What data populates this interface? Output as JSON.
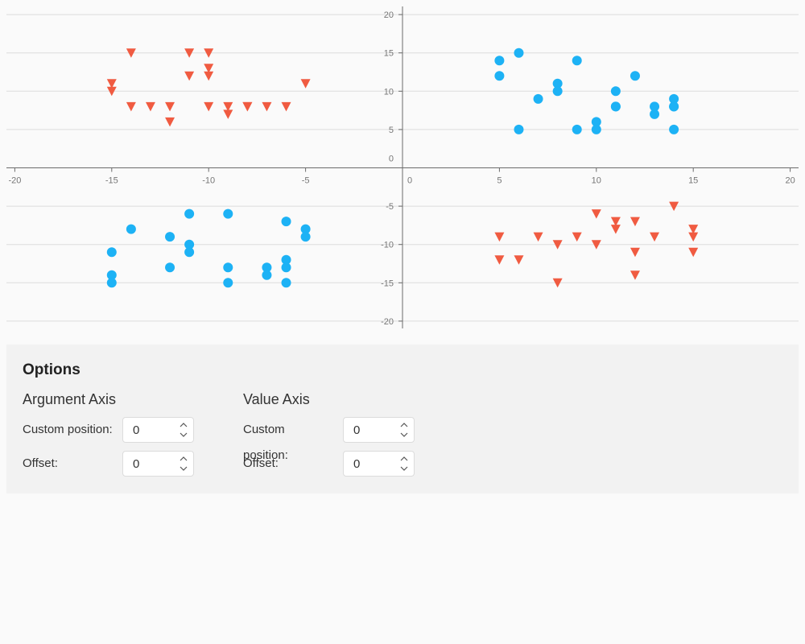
{
  "chart_data": {
    "type": "scatter",
    "title": "",
    "xlabel": "",
    "ylabel": "",
    "xlim": [
      -20,
      20
    ],
    "ylim": [
      -20,
      20
    ],
    "x_ticks": [
      -20,
      -15,
      -10,
      -5,
      0,
      5,
      10,
      15,
      20
    ],
    "y_ticks": [
      20,
      15,
      10,
      5,
      0,
      -5,
      -10,
      -15,
      -20
    ],
    "grid": "horizontal",
    "legend": "none",
    "series": [
      {
        "marker": "circle",
        "color": "#1db2f5",
        "points": [
          [
            5,
            14
          ],
          [
            5,
            12
          ],
          [
            6,
            15
          ],
          [
            6,
            5
          ],
          [
            7,
            9
          ],
          [
            8,
            11
          ],
          [
            8,
            10
          ],
          [
            9,
            14
          ],
          [
            9,
            5
          ],
          [
            10,
            6
          ],
          [
            10,
            5
          ],
          [
            11,
            10
          ],
          [
            11,
            8
          ],
          [
            11,
            8
          ],
          [
            12,
            12
          ],
          [
            13,
            8
          ],
          [
            13,
            7
          ],
          [
            14,
            9
          ],
          [
            14,
            8
          ],
          [
            14,
            8
          ],
          [
            14,
            5
          ],
          [
            -15,
            -11
          ],
          [
            -15,
            -14
          ],
          [
            -15,
            -15
          ],
          [
            -14,
            -8
          ],
          [
            -12,
            -9
          ],
          [
            -12,
            -13
          ],
          [
            -11,
            -6
          ],
          [
            -11,
            -10
          ],
          [
            -11,
            -11
          ],
          [
            -9,
            -6
          ],
          [
            -9,
            -13
          ],
          [
            -9,
            -15
          ],
          [
            -7,
            -13
          ],
          [
            -7,
            -14
          ],
          [
            -6,
            -7
          ],
          [
            -6,
            -12
          ],
          [
            -6,
            -13
          ],
          [
            -6,
            -15
          ],
          [
            -5,
            -8
          ],
          [
            -5,
            -9
          ]
        ]
      },
      {
        "marker": "triangle-down",
        "color": "#f05b41",
        "points": [
          [
            -15,
            11
          ],
          [
            -15,
            10
          ],
          [
            -14,
            15
          ],
          [
            -14,
            8
          ],
          [
            -13,
            8
          ],
          [
            -12,
            8
          ],
          [
            -12,
            6
          ],
          [
            -11,
            15
          ],
          [
            -11,
            12
          ],
          [
            -10,
            15
          ],
          [
            -10,
            13
          ],
          [
            -10,
            12
          ],
          [
            -10,
            8
          ],
          [
            -9,
            8
          ],
          [
            -9,
            7
          ],
          [
            -8,
            8
          ],
          [
            -8,
            8
          ],
          [
            -7,
            8
          ],
          [
            -6,
            8
          ],
          [
            -5,
            11
          ],
          [
            5,
            -9
          ],
          [
            5,
            -12
          ],
          [
            6,
            -12
          ],
          [
            7,
            -9
          ],
          [
            8,
            -10
          ],
          [
            8,
            -15
          ],
          [
            9,
            -9
          ],
          [
            10,
            -6
          ],
          [
            10,
            -10
          ],
          [
            11,
            -7
          ],
          [
            11,
            -8
          ],
          [
            12,
            -7
          ],
          [
            12,
            -11
          ],
          [
            12,
            -14
          ],
          [
            13,
            -9
          ],
          [
            14,
            -5
          ],
          [
            15,
            -8
          ],
          [
            15,
            -9
          ],
          [
            15,
            -11
          ]
        ]
      }
    ]
  },
  "options": {
    "title": "Options",
    "argument_axis": {
      "title": "Argument Axis",
      "custom_position_label": "Custom position:",
      "custom_position_value": "0",
      "offset_label": "Offset:",
      "offset_value": "0"
    },
    "value_axis": {
      "title": "Value Axis",
      "custom_position_label": "Custom position:",
      "custom_position_value": "0",
      "offset_label": "Offset:",
      "offset_value": "0"
    }
  },
  "icons": {
    "spin_up": "chevron-up-icon",
    "spin_down": "chevron-down-icon"
  }
}
